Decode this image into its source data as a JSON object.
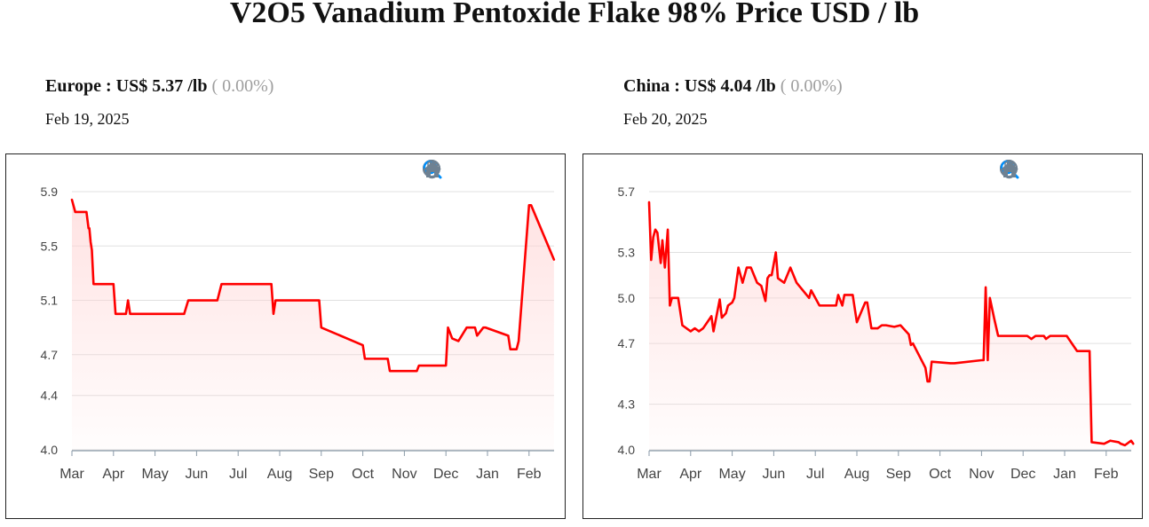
{
  "page": {
    "title": "V2O5 Vanadium Pentoxide Flake 98% Price USD / lb"
  },
  "regions": [
    {
      "label": "Europe : US$ 5.37 /lb",
      "change": "( 0.00%)",
      "date": "Feb 19, 2025"
    },
    {
      "label": "China : US$ 4.04 /lb",
      "change": "( 0.00%)",
      "date": "Feb 20, 2025"
    }
  ],
  "toolbar": {
    "icons": [
      "zoom-in-icon",
      "zoom-out-icon",
      "zoom-select-icon",
      "pan-hand-icon",
      "home-reset-icon"
    ]
  },
  "colors": {
    "line": "#ff0000",
    "fill_top": "#ffd6d6",
    "grid": "#e0e0e0",
    "icon": "#6e8192",
    "icon_active": "#008ffb"
  },
  "chart_data": [
    {
      "type": "area",
      "title": "",
      "xlabel": "",
      "ylabel": "",
      "x_ticks": [
        "Mar",
        "Apr",
        "May",
        "Jun",
        "Jul",
        "Aug",
        "Sep",
        "Oct",
        "Nov",
        "Dec",
        "Jan",
        "Feb"
      ],
      "y_ticks": [
        4.0,
        4.4,
        4.7,
        5.1,
        5.5,
        5.9
      ],
      "ylim": [
        4.0,
        5.9
      ],
      "grid": true,
      "series": [
        {
          "x": [
            0.0,
            0.08,
            0.35,
            0.4,
            0.42,
            0.45,
            0.48,
            0.52,
            0.6,
            1.0,
            1.05,
            1.3,
            1.35,
            1.4,
            2.0,
            2.2,
            2.7,
            2.8,
            3.5,
            3.6,
            3.85,
            4.0,
            4.05,
            4.8,
            4.85,
            4.9,
            4.95,
            5.3,
            5.95,
            6.0,
            7.0,
            7.05,
            7.6,
            7.65,
            8.3,
            8.35,
            8.45,
            8.5,
            8.55,
            9.0,
            9.05,
            9.15,
            9.3,
            9.5,
            9.55,
            9.65,
            9.7,
            9.75,
            9.9,
            9.95,
            10.5,
            10.55,
            10.7,
            10.75,
            11.0,
            11.05,
            11.6
          ],
          "y": [
            5.84,
            5.75,
            5.75,
            5.63,
            5.63,
            5.53,
            5.47,
            5.22,
            5.22,
            5.22,
            5.0,
            5.0,
            5.1,
            5.0,
            5.0,
            5.0,
            5.0,
            5.1,
            5.1,
            5.22,
            5.22,
            5.22,
            5.22,
            5.22,
            5.0,
            5.1,
            5.1,
            5.1,
            5.1,
            4.9,
            4.77,
            4.67,
            4.67,
            4.58,
            4.58,
            4.62,
            4.62,
            4.62,
            4.62,
            4.62,
            4.9,
            4.82,
            4.8,
            4.9,
            4.9,
            4.9,
            4.9,
            4.84,
            4.9,
            4.9,
            4.84,
            4.74,
            4.74,
            4.8,
            5.8,
            5.8,
            5.4
          ]
        }
      ]
    },
    {
      "type": "area",
      "title": "",
      "xlabel": "",
      "ylabel": "",
      "x_ticks": [
        "Mar",
        "Apr",
        "May",
        "Jun",
        "Jul",
        "Aug",
        "Sep",
        "Oct",
        "Nov",
        "Dec",
        "Jan",
        "Feb"
      ],
      "y_ticks": [
        4.0,
        4.3,
        4.7,
        5.0,
        5.3,
        5.7
      ],
      "ylim": [
        4.0,
        5.7
      ],
      "grid": true,
      "series": [
        {
          "x": [
            0.0,
            0.05,
            0.1,
            0.15,
            0.2,
            0.28,
            0.32,
            0.38,
            0.45,
            0.5,
            0.55,
            0.6,
            0.65,
            0.7,
            0.8,
            1.0,
            1.1,
            1.2,
            1.3,
            1.5,
            1.55,
            1.6,
            1.7,
            1.75,
            1.85,
            1.9,
            2.0,
            2.05,
            2.15,
            2.25,
            2.35,
            2.45,
            2.6,
            2.7,
            2.8,
            2.85,
            2.9,
            2.95,
            3.05,
            3.1,
            3.15,
            3.25,
            3.4,
            3.55,
            3.85,
            3.9,
            4.1,
            4.25,
            4.3,
            4.35,
            4.5,
            4.55,
            4.65,
            4.7,
            4.75,
            4.8,
            4.85,
            4.9,
            5.0,
            5.2,
            5.25,
            5.35,
            5.5,
            5.6,
            5.7,
            5.9,
            6.05,
            6.25,
            6.3,
            6.35,
            6.65,
            6.7,
            6.75,
            6.8,
            7.25,
            7.35,
            8.0,
            8.05,
            8.1,
            8.15,
            8.2,
            8.3,
            8.4,
            8.6,
            9.1,
            9.2,
            9.3,
            9.5,
            9.55,
            9.65,
            9.85,
            10.05,
            10.3,
            10.6,
            10.65,
            10.95,
            11.1,
            11.3,
            11.35,
            11.45,
            11.6,
            11.65
          ],
          "y": [
            5.63,
            5.25,
            5.4,
            5.45,
            5.43,
            5.23,
            5.38,
            5.2,
            5.45,
            4.95,
            5.0,
            5.0,
            5.0,
            5.0,
            4.82,
            4.78,
            4.8,
            4.78,
            4.8,
            4.88,
            4.78,
            4.85,
            4.99,
            4.87,
            4.9,
            4.95,
            4.97,
            5.0,
            5.2,
            5.1,
            5.2,
            5.2,
            5.1,
            5.08,
            4.98,
            5.13,
            5.15,
            5.15,
            5.3,
            5.13,
            5.12,
            5.1,
            5.2,
            5.1,
            5.0,
            5.05,
            4.95,
            4.95,
            4.95,
            4.95,
            4.95,
            5.02,
            4.95,
            5.02,
            5.02,
            5.02,
            5.02,
            5.02,
            4.84,
            4.97,
            4.97,
            4.8,
            4.8,
            4.82,
            4.82,
            4.81,
            4.82,
            4.76,
            4.69,
            4.7,
            4.54,
            4.45,
            4.45,
            4.58,
            4.57,
            4.57,
            4.59,
            4.59,
            5.07,
            4.59,
            5.0,
            4.87,
            4.75,
            4.75,
            4.75,
            4.73,
            4.75,
            4.75,
            4.73,
            4.75,
            4.75,
            4.75,
            4.65,
            4.65,
            4.05,
            4.04,
            4.06,
            4.05,
            4.04,
            4.03,
            4.06,
            4.04
          ]
        }
      ]
    }
  ]
}
